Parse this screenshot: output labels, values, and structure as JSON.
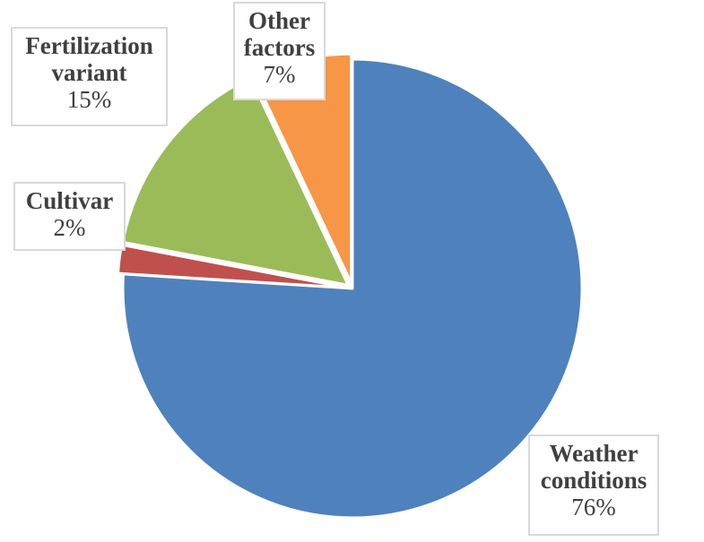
{
  "chart_data": {
    "type": "pie",
    "title": "",
    "start_angle_deg": 0,
    "slices": [
      {
        "name": "Weather conditions",
        "name_lines": [
          "Weather",
          "conditions"
        ],
        "value": 76,
        "label": "76%",
        "color": "#4f81bd"
      },
      {
        "name": "Cultivar",
        "name_lines": [
          "Cultivar"
        ],
        "value": 2,
        "label": "2%",
        "color": "#c0504d"
      },
      {
        "name": "Fertilization variant",
        "name_lines": [
          "Fertilization",
          "variant"
        ],
        "value": 15,
        "label": "15%",
        "color": "#9bbb59"
      },
      {
        "name": "Other factors",
        "name_lines": [
          "Other",
          "factors"
        ],
        "value": 7,
        "label": "7%",
        "color": "#f79646"
      }
    ],
    "legend": "none",
    "data_labels": "outside-callout-boxes"
  }
}
